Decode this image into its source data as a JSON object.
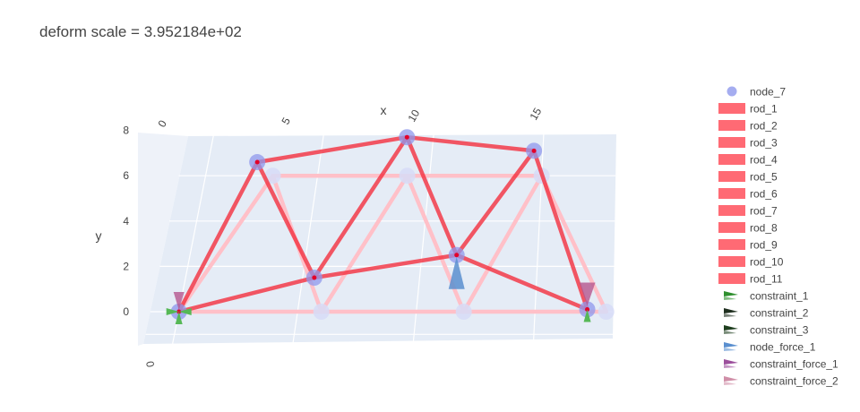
{
  "title": "deform scale = 3.952184e+02",
  "colors": {
    "rod": "#ff6a74",
    "rod_deformed": "#f4303f",
    "rod_original": "#ffc0c8",
    "node": "#8f98ec",
    "node_faint": "#d7dcf7",
    "node_force": "#5a8fcf",
    "constraint_force": "#b5568f",
    "constraint_green": "#56b856",
    "constraint_dark": "#1f2f1f",
    "plane": "#e5ecf6"
  },
  "chart_data": {
    "type": "scatter",
    "title": "deform scale = 3.952184e+02",
    "xlabel": "x",
    "ylabel": "y",
    "zlabel": "",
    "x_ticks": [
      "0",
      "5",
      "10",
      "15"
    ],
    "y_ticks": [
      "0",
      "2",
      "4",
      "6",
      "8"
    ],
    "z_ticks": [
      "0"
    ],
    "xlim": [
      -1.2,
      18.3
    ],
    "ylim": [
      -1.5,
      8
    ],
    "grid": true,
    "legend_position": "right",
    "legend": [
      {
        "name": "node_7",
        "kind": "marker"
      },
      {
        "name": "rod_1",
        "kind": "bar"
      },
      {
        "name": "rod_2",
        "kind": "bar"
      },
      {
        "name": "rod_3",
        "kind": "bar"
      },
      {
        "name": "rod_4",
        "kind": "bar"
      },
      {
        "name": "rod_5",
        "kind": "bar"
      },
      {
        "name": "rod_6",
        "kind": "bar"
      },
      {
        "name": "rod_7",
        "kind": "bar"
      },
      {
        "name": "rod_8",
        "kind": "bar"
      },
      {
        "name": "rod_9",
        "kind": "bar"
      },
      {
        "name": "rod_10",
        "kind": "bar"
      },
      {
        "name": "rod_11",
        "kind": "bar"
      },
      {
        "name": "constraint_1",
        "kind": "cone",
        "color": "#2f8f2f"
      },
      {
        "name": "constraint_2",
        "kind": "cone",
        "color": "#1f2f1f"
      },
      {
        "name": "constraint_3",
        "kind": "cone",
        "color": "#1f3f1f"
      },
      {
        "name": "node_force_1",
        "kind": "cone",
        "color": "#5a8fcf"
      },
      {
        "name": "constraint_force_1",
        "kind": "cone",
        "color": "#9c4f9c"
      },
      {
        "name": "constraint_force_2",
        "kind": "cone",
        "color": "#d08fa8"
      }
    ],
    "original_nodes": [
      [
        0,
        0
      ],
      [
        3,
        6
      ],
      [
        6,
        0
      ],
      [
        9,
        6
      ],
      [
        12,
        0
      ],
      [
        15,
        6
      ],
      [
        18,
        0
      ]
    ],
    "deformed_nodes": [
      [
        0,
        0
      ],
      [
        2.2,
        6.6
      ],
      [
        5.5,
        1.5
      ],
      [
        8.8,
        7.7
      ],
      [
        11.5,
        2.5
      ],
      [
        14.6,
        7.1
      ],
      [
        17.2,
        0.1
      ]
    ],
    "rods": [
      [
        0,
        1
      ],
      [
        0,
        2
      ],
      [
        1,
        2
      ],
      [
        1,
        3
      ],
      [
        2,
        3
      ],
      [
        2,
        4
      ],
      [
        3,
        4
      ],
      [
        3,
        5
      ],
      [
        4,
        5
      ],
      [
        4,
        6
      ],
      [
        5,
        6
      ]
    ]
  }
}
